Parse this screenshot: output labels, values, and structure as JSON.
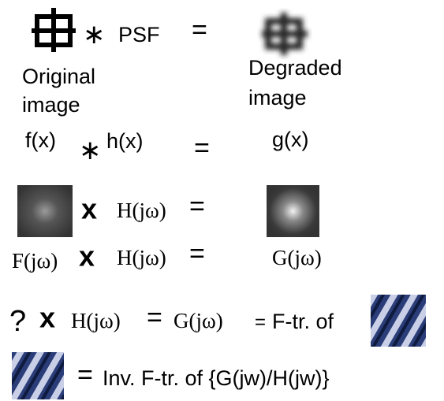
{
  "row1": {
    "convolve": "∗",
    "psf": "PSF",
    "equals": "="
  },
  "labels": {
    "original": [
      "Original",
      "image"
    ],
    "degraded": [
      "Degraded",
      "image"
    ]
  },
  "row2": {
    "f": "f(x)",
    "convolve": "∗",
    "h": "h(x)",
    "equals": "=",
    "g": "g(x)"
  },
  "row3": {
    "times": "x",
    "H": "H(jω)",
    "equals": "="
  },
  "row4": {
    "F": "F(jω)",
    "times": "x",
    "H": "H(jω)",
    "equals": "=",
    "G": "G(jω)"
  },
  "row5": {
    "question": "?",
    "times": "x",
    "H": "H(jω)",
    "equals1": "=",
    "G": "G(jω)",
    "equals2": "=",
    "ftr": "F-tr. of"
  },
  "row6": {
    "equals": "=",
    "inv": "Inv. F-tr. of {G(jw)/H(jw)}"
  }
}
